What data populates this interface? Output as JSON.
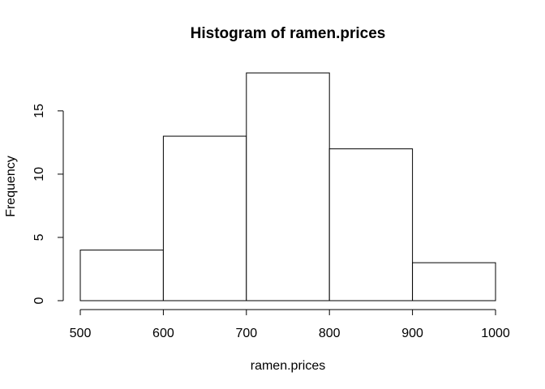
{
  "chart_data": {
    "type": "bar",
    "subtype": "histogram",
    "title": "Histogram of ramen.prices",
    "xlabel": "ramen.prices",
    "ylabel": "Frequency",
    "bins": [
      {
        "from": 500,
        "to": 600,
        "count": 4
      },
      {
        "from": 600,
        "to": 700,
        "count": 13
      },
      {
        "from": 700,
        "to": 800,
        "count": 18
      },
      {
        "from": 800,
        "to": 900,
        "count": 12
      },
      {
        "from": 900,
        "to": 1000,
        "count": 3
      }
    ],
    "xlim": [
      500,
      1000
    ],
    "ylim": [
      0,
      18
    ],
    "xticks": [
      "500",
      "600",
      "700",
      "800",
      "900",
      "1000"
    ],
    "yticks": [
      "0",
      "5",
      "10",
      "15"
    ],
    "bar_fill": "#ffffff",
    "bar_stroke": "#000000",
    "grid": false,
    "legend": "none"
  }
}
